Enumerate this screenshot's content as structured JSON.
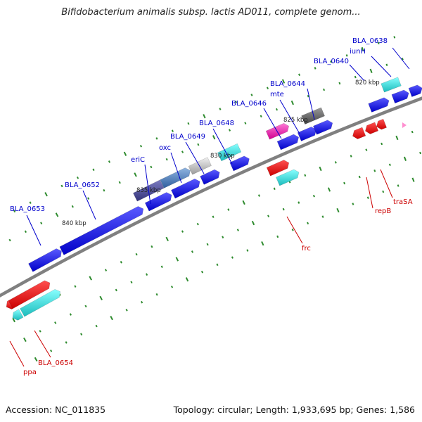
{
  "title": "Bifidobacterium animalis subsp. lactis AD011, complete genom...",
  "footer": {
    "accession": "Accession: NC_011835",
    "summary": "Topology: circular; Length: 1,933,695 bp; Genes: 1,586"
  },
  "colors": {
    "forward_label": "#0000cc",
    "reverse_label": "#cc0000",
    "tick": "#2e8b2e",
    "backbone": "#808080"
  },
  "scale_labels": [
    "820 kbp",
    "825 kbp",
    "830 kbp",
    "835 kbp",
    "840 kbp"
  ],
  "forward_labels": [
    "BLA_0638",
    "iunH",
    "BLA_0640",
    "BLA_0644",
    "mte",
    "BLA_0646",
    "BLA_0648",
    "BLA_0649",
    "oxc",
    "eriC",
    "BLA_0652",
    "BLA_0653"
  ],
  "reverse_labels": [
    "traSA",
    "repB",
    "frc",
    "BLA_0654",
    "ppa"
  ]
}
